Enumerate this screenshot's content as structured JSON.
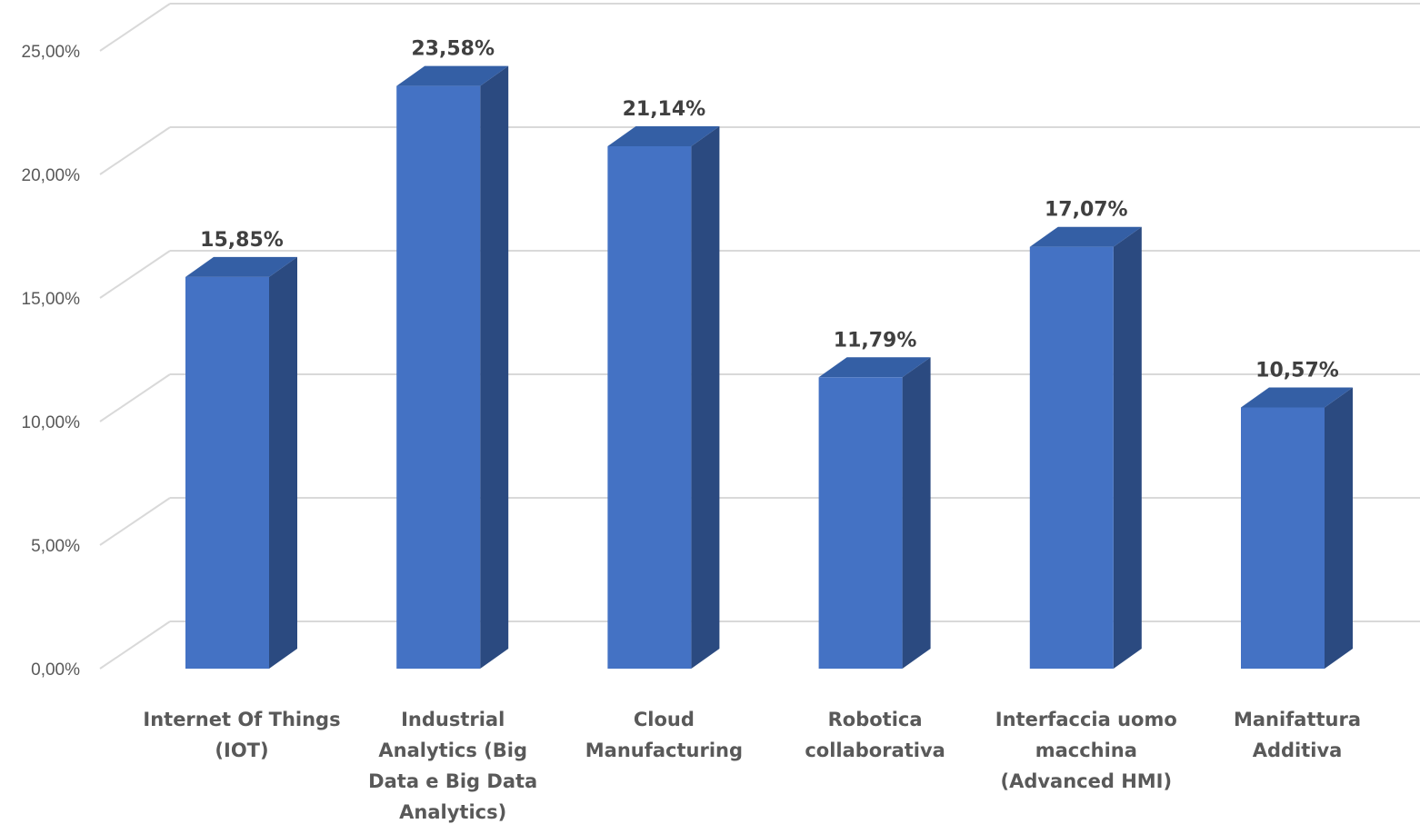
{
  "chart_data": {
    "type": "bar",
    "style": "3d-column",
    "title": "",
    "xlabel": "",
    "ylabel": "",
    "categories": [
      [
        "Internet Of Things",
        "(IOT)"
      ],
      [
        "Industrial",
        "Analytics (Big",
        "Data e Big Data",
        "Analytics)"
      ],
      [
        "Cloud",
        "Manufacturing"
      ],
      [
        "Robotica",
        "collaborativa"
      ],
      [
        "Interfaccia uomo",
        "macchina",
        "(Advanced HMI)"
      ],
      [
        "Manifattura",
        "Additiva"
      ]
    ],
    "values": [
      15.85,
      23.58,
      21.14,
      11.79,
      17.07,
      10.57
    ],
    "data_labels": [
      "15,85%",
      "23,58%",
      "21,14%",
      "11,79%",
      "17,07%",
      "10,57%"
    ],
    "ylim": [
      0,
      25
    ],
    "yticks": [
      0,
      5,
      10,
      15,
      20,
      25
    ],
    "ytick_labels": [
      "0,00%",
      "5,00%",
      "10,00%",
      "15,00%",
      "20,00%",
      "25,00%"
    ],
    "grid": true,
    "legend": "none",
    "colors": {
      "bar_front": "#4472C4",
      "bar_side": "#2B4A80",
      "bar_top": "#345FA5",
      "grid": "#D9D9D9",
      "text": "#595959",
      "data_label": "#404040"
    }
  }
}
